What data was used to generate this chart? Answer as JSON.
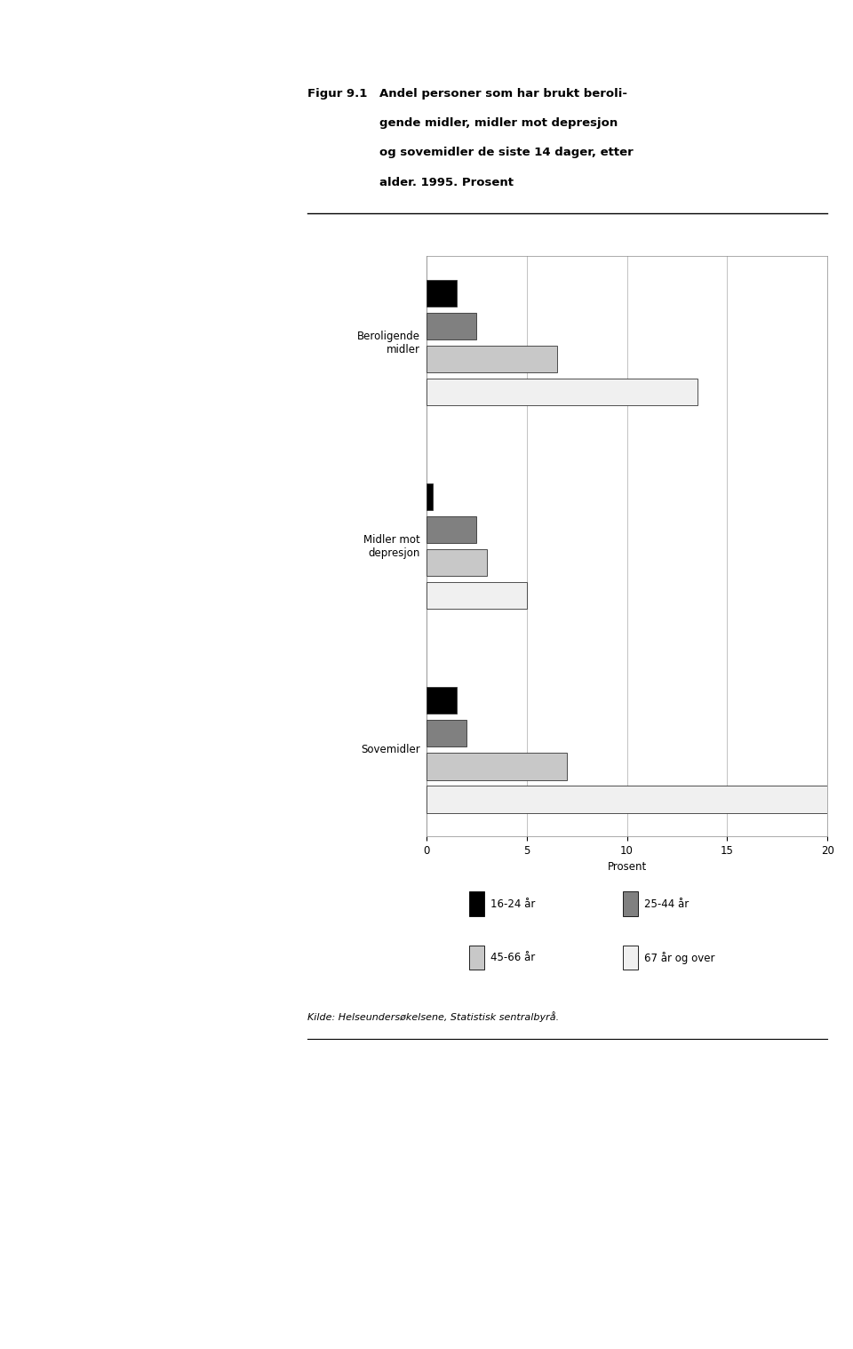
{
  "fig_label": "Figur 9.1",
  "title_text": "Andel personer som har brukt beroligende midler, midler mot depresjon og sovemidler de siste 14 dager, etter alder. 1995. Prosent",
  "categories": [
    "Beroligende\nmidler",
    "Midler mot\ndepresjon",
    "Sovemidler"
  ],
  "age_groups": [
    "16-24 år",
    "25-44 år",
    "45-66 år",
    "67 år og over"
  ],
  "colors": [
    "#000000",
    "#808080",
    "#c8c8c8",
    "#f0f0f0"
  ],
  "values": {
    "Beroligende\nmidler": [
      1.5,
      2.5,
      6.5,
      13.5
    ],
    "Midler mot\ndepresjon": [
      0.3,
      2.5,
      3.0,
      5.0
    ],
    "Sovemidler": [
      1.5,
      2.0,
      7.0,
      20.0
    ]
  },
  "xlabel": "Prosent",
  "xlim": [
    0,
    20
  ],
  "xticks": [
    0,
    5,
    10,
    15,
    20
  ],
  "source": "Kilde: Helseundersøkelsene, Statistisk sentralbyrå.",
  "background_color": "#ffffff"
}
